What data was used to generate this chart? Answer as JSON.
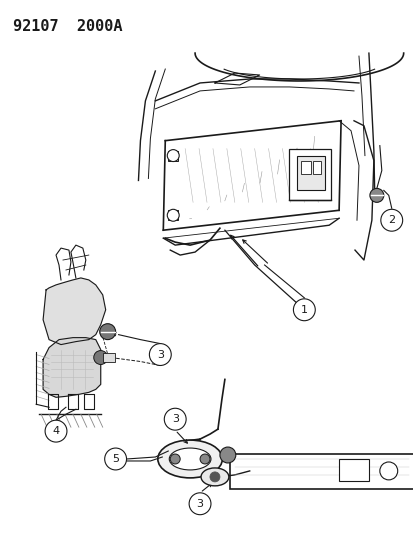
{
  "title": "92107  2000A",
  "bg_color": "#ffffff",
  "line_color": "#1a1a1a",
  "title_fontsize": 11,
  "fig_width": 4.14,
  "fig_height": 5.33,
  "dpi": 100
}
